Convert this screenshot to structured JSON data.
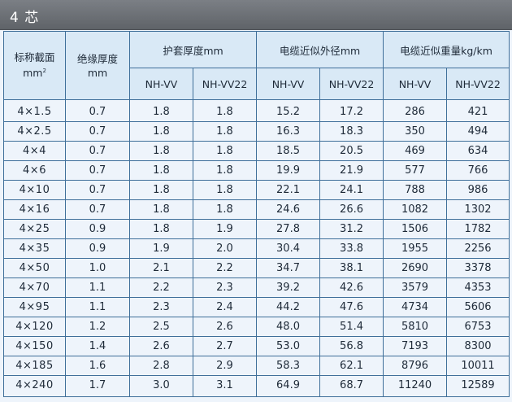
{
  "title": "4 芯",
  "headers": {
    "section": {
      "text": "标称截面",
      "unit": "mm",
      "unit_sup": "2"
    },
    "insulation": {
      "text": "绝缘厚度",
      "unit": "mm"
    },
    "sheath": "护套厚度mm",
    "diameter": "电缆近似外径mm",
    "weight": "电缆近似重量kg/km",
    "sub": [
      "NH-VV",
      "NH-VV22",
      "NH-VV",
      "NH-VV22",
      "NH-VV",
      "NH-VV22"
    ]
  },
  "rows": [
    [
      "4×1.5",
      "0.7",
      "1.8",
      "1.8",
      "15.2",
      "17.2",
      "286",
      "421"
    ],
    [
      "4×2.5",
      "0.7",
      "1.8",
      "1.8",
      "16.3",
      "18.3",
      "350",
      "494"
    ],
    [
      "4×4",
      "0.7",
      "1.8",
      "1.8",
      "18.5",
      "20.5",
      "469",
      "634"
    ],
    [
      "4×6",
      "0.7",
      "1.8",
      "1.8",
      "19.9",
      "21.9",
      "577",
      "766"
    ],
    [
      "4×10",
      "0.7",
      "1.8",
      "1.8",
      "22.1",
      "24.1",
      "788",
      "986"
    ],
    [
      "4×16",
      "0.7",
      "1.8",
      "1.8",
      "24.6",
      "26.6",
      "1082",
      "1302"
    ],
    [
      "4×25",
      "0.9",
      "1.8",
      "1.9",
      "27.8",
      "31.2",
      "1506",
      "1782"
    ],
    [
      "4×35",
      "0.9",
      "1.9",
      "2.0",
      "30.4",
      "33.8",
      "1955",
      "2256"
    ],
    [
      "4×50",
      "1.0",
      "2.1",
      "2.2",
      "34.7",
      "38.1",
      "2690",
      "3378"
    ],
    [
      "4×70",
      "1.1",
      "2.2",
      "2.3",
      "39.2",
      "42.6",
      "3579",
      "4353"
    ],
    [
      "4×95",
      "1.1",
      "2.3",
      "2.4",
      "44.2",
      "47.6",
      "4734",
      "5606"
    ],
    [
      "4×120",
      "1.2",
      "2.5",
      "2.6",
      "48.0",
      "51.4",
      "5810",
      "6753"
    ],
    [
      "4×150",
      "1.4",
      "2.6",
      "2.7",
      "53.0",
      "56.8",
      "7193",
      "8300"
    ],
    [
      "4×185",
      "1.6",
      "2.8",
      "2.9",
      "58.3",
      "62.1",
      "8796",
      "10011"
    ],
    [
      "4×240",
      "1.7",
      "3.0",
      "3.1",
      "64.9",
      "68.7",
      "11240",
      "12589"
    ]
  ]
}
